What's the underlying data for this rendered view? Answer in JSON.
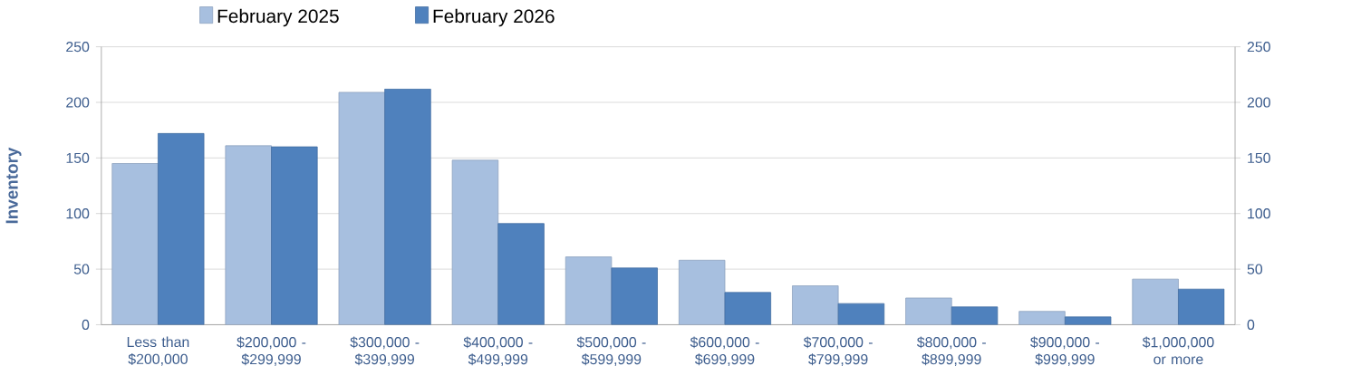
{
  "chart_data": {
    "type": "bar",
    "ylabel": "Inventory",
    "categories": [
      "Less than $200,000",
      "$200,000 - $299,999",
      "$300,000 - $399,999",
      "$400,000 - $499,999",
      "$500,000 - $599,999",
      "$600,000 - $699,999",
      "$700,000 - $799,999",
      "$800,000 - $899,999",
      "$900,000 - $999,999",
      "$1,000,000 or more"
    ],
    "series": [
      {
        "name": "February 2025",
        "color": "#a7bfdf",
        "values": [
          145,
          161,
          209,
          148,
          61,
          58,
          35,
          24,
          12,
          41
        ]
      },
      {
        "name": "February 2026",
        "color": "#4f81bd",
        "values": [
          172,
          160,
          212,
          91,
          51,
          29,
          19,
          16,
          7,
          32
        ]
      }
    ],
    "ylim": [
      0,
      250
    ],
    "yticks": [
      0,
      50,
      100,
      150,
      200,
      250
    ],
    "y2lim": [
      0,
      250
    ],
    "y2ticks": [
      0,
      50,
      100,
      150,
      200,
      250
    ],
    "grid": "y",
    "legend": "top"
  }
}
